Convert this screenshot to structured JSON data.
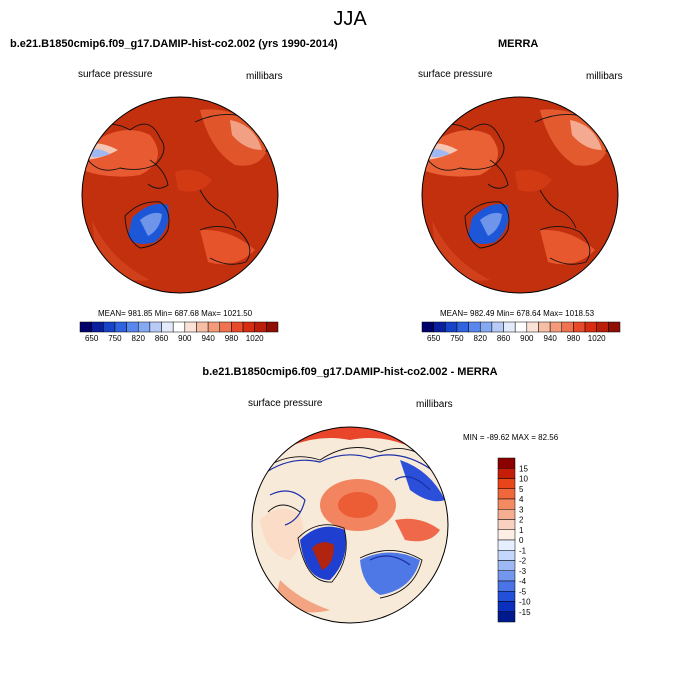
{
  "title": "JJA",
  "panels": [
    {
      "title": "b.e21.B1850cmip6.f09_g17.DAMIP-hist-co2.002 (yrs 1990-2014)",
      "left_label": "surface pressure",
      "right_label": "millibars",
      "stats": "MEAN= 981.85  Min= 687.68  Max= 1021.50"
    },
    {
      "title": "MERRA",
      "left_label": "surface pressure",
      "right_label": "millibars",
      "stats": "MEAN= 982.49  Min= 678.64  Max= 1018.53"
    },
    {
      "title": "b.e21.B1850cmip6.f09_g17.DAMIP-hist-co2.002 - MERRA",
      "left_label": "surface pressure",
      "right_label": "millibars",
      "stats": "MIN = -89.62 MAX =  82.56"
    }
  ],
  "colorbar_horizontal": {
    "colors": [
      "#00006a",
      "#0a1f9e",
      "#1643c8",
      "#2f63e0",
      "#5a87ee",
      "#86a9f3",
      "#b8cbf7",
      "#e3eafb",
      "#ffffff",
      "#fbe2d6",
      "#f7bea6",
      "#f49a7a",
      "#ef7350",
      "#e84b2a",
      "#d72d12",
      "#bb1f0b",
      "#8f0f05"
    ],
    "tick_labels": [
      "650",
      "750",
      "820",
      "860",
      "900",
      "940",
      "980",
      "1020"
    ]
  },
  "colorbar_vertical": {
    "colors": [
      "#8c0000",
      "#c41d08",
      "#e8451a",
      "#f0683a",
      "#f48a62",
      "#f6ae90",
      "#f9d1c0",
      "#fdeee6",
      "#e6efff",
      "#c4d6fb",
      "#9cb8f5",
      "#7396ee",
      "#4a73e6",
      "#2350d8",
      "#0b2fbe",
      "#001a8e"
    ],
    "tick_labels": [
      "15",
      "10",
      "5",
      "4",
      "3",
      "2",
      "1",
      "0",
      "-1",
      "-2",
      "-3",
      "-4",
      "-5",
      "-10",
      "-15"
    ]
  },
  "colors": {
    "abs_background": "#c2300e",
    "diff_background": "#f8ead8"
  }
}
